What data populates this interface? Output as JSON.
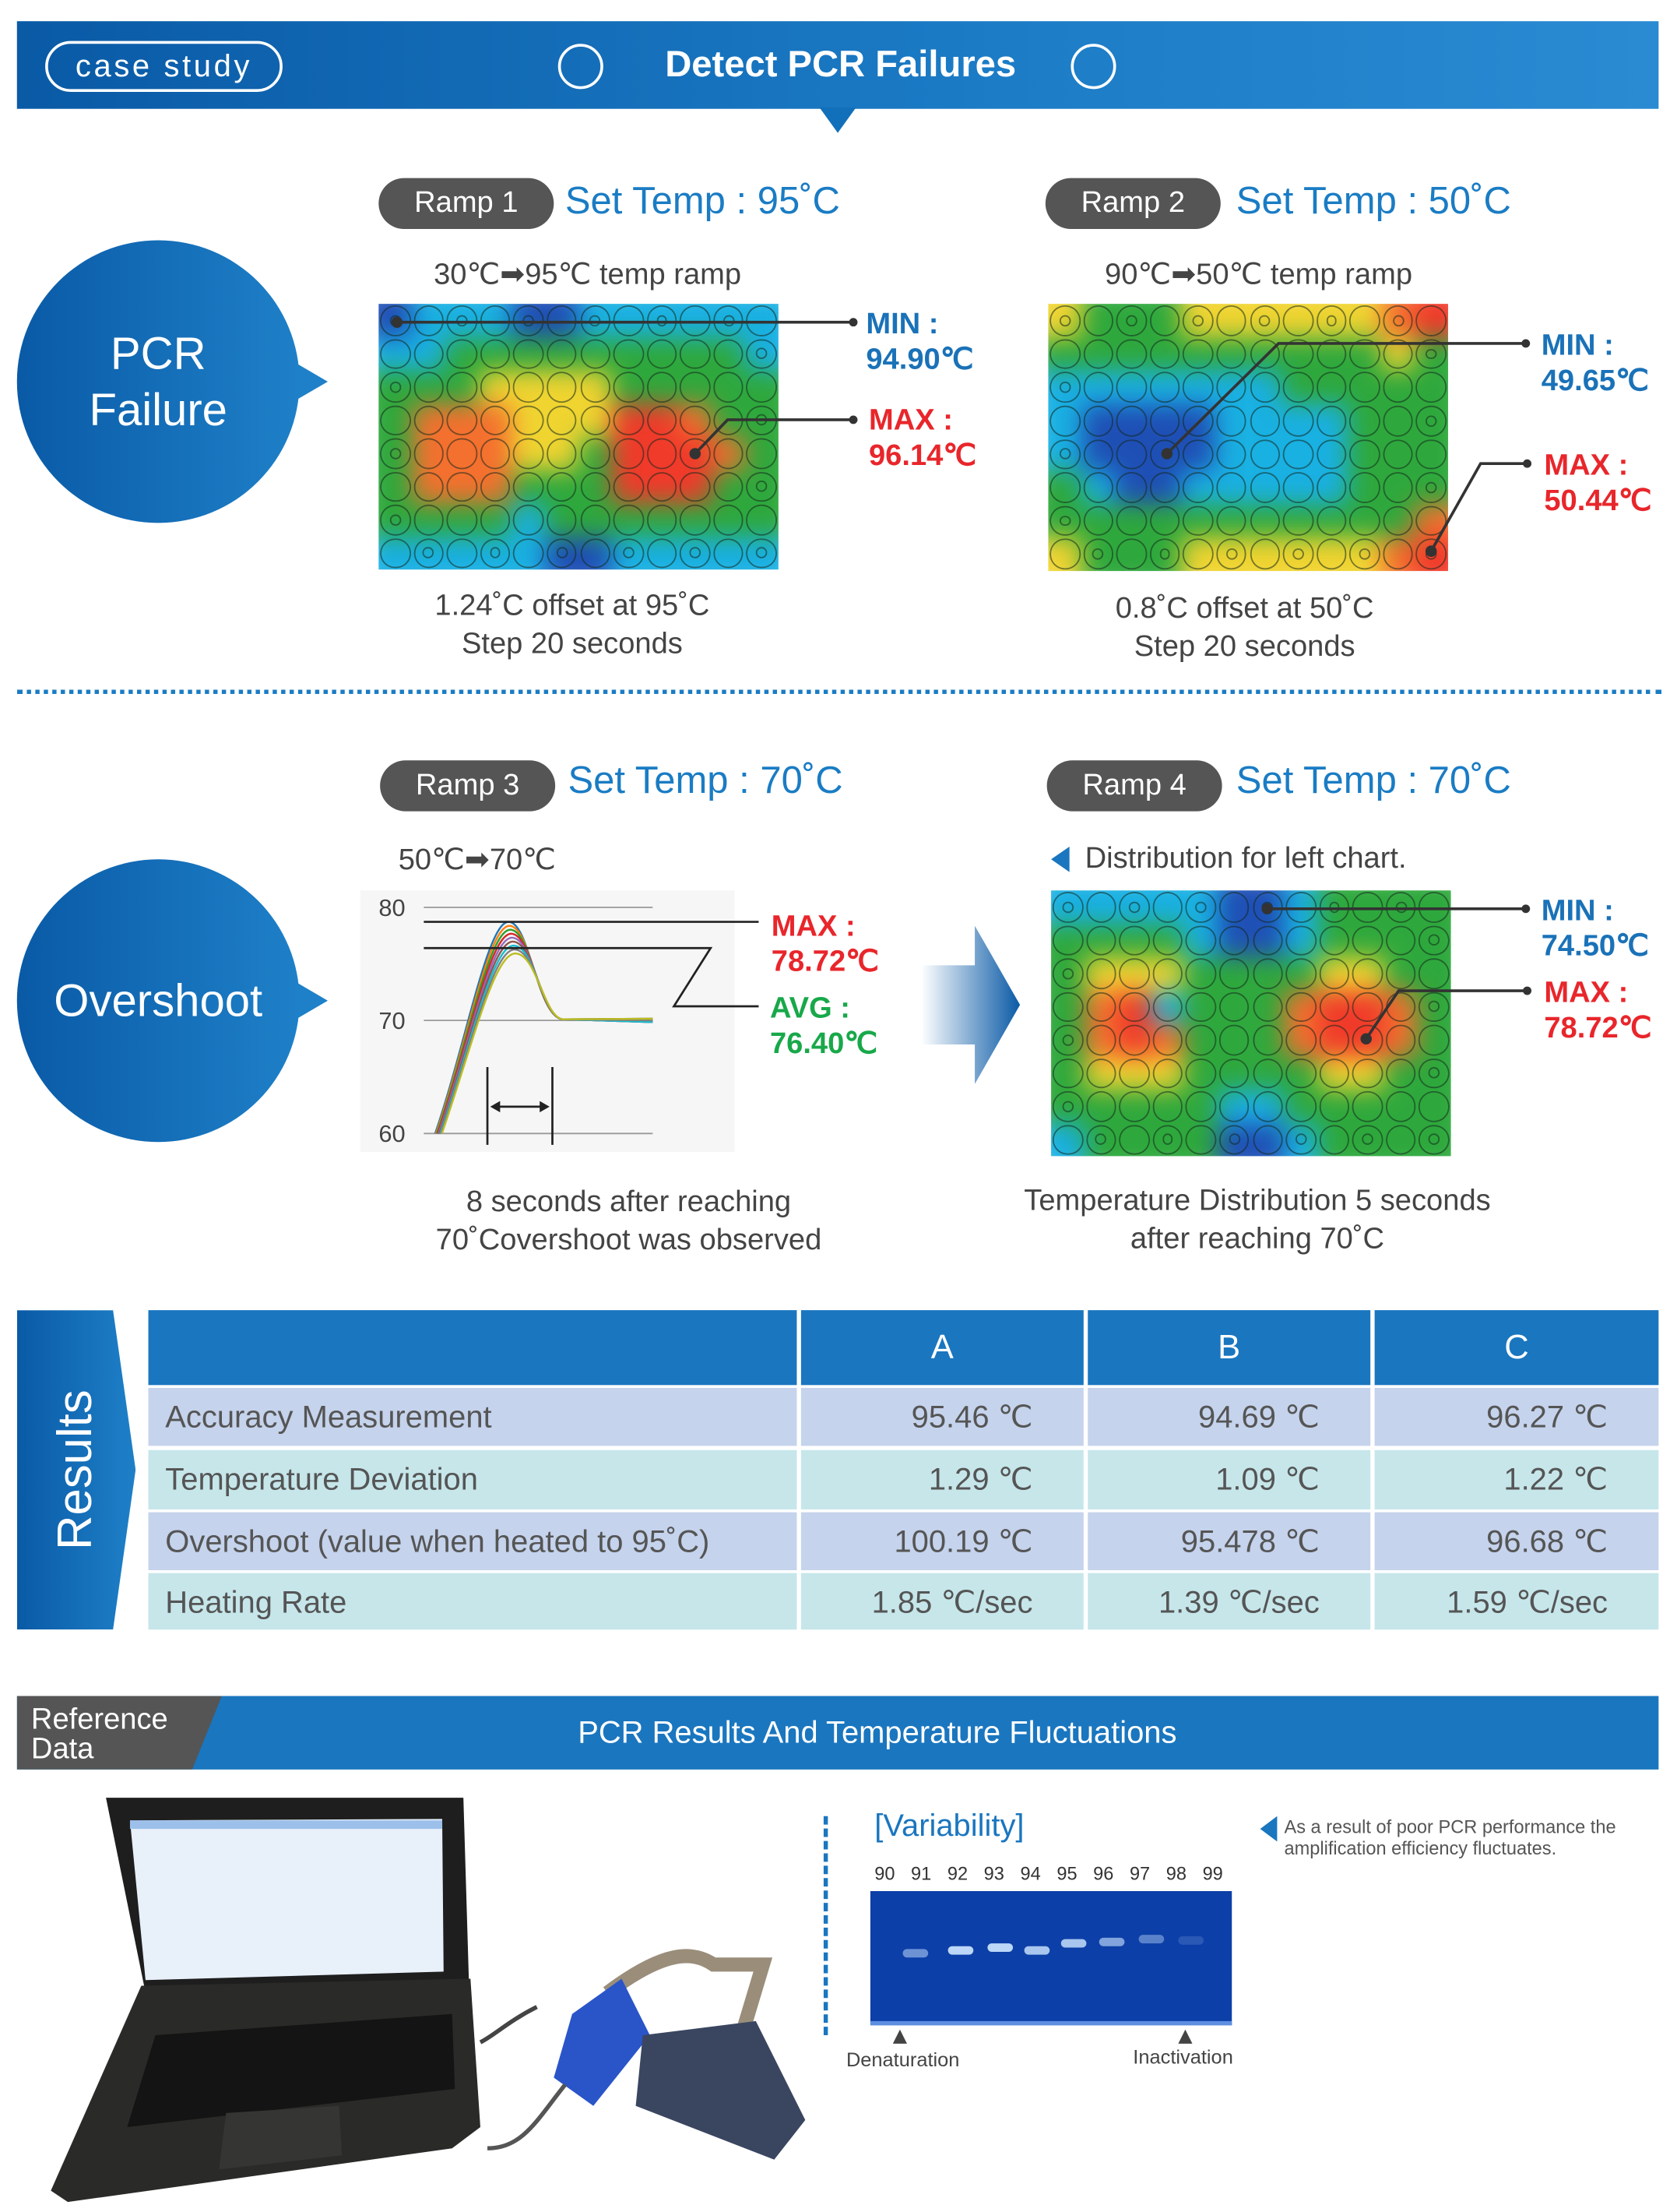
{
  "header": {
    "badge": "case study",
    "title": "Detect PCR Failures"
  },
  "section1": {
    "bubble": [
      "PCR",
      "Failure"
    ],
    "ramp1": {
      "label": "Ramp 1",
      "set_temp": "Set Temp : 95˚C",
      "subtitle": "30℃➡95℃ temp ramp",
      "min_label": "MIN :",
      "min_value": "94.90℃",
      "max_label": "MAX :",
      "max_value": "96.14℃",
      "caption": [
        "1.24˚C offset at 95˚C",
        "Step 20 seconds"
      ]
    },
    "ramp2": {
      "label": "Ramp 2",
      "set_temp": "Set Temp : 50˚C",
      "subtitle": "90℃➡50℃  temp ramp",
      "min_label": "MIN :",
      "min_value": "49.65℃",
      "max_label": "MAX :",
      "max_value": "50.44℃",
      "caption": [
        "0.8˚C offset at 50˚C",
        "Step 20 seconds"
      ]
    }
  },
  "section2": {
    "bubble": "Overshoot",
    "ramp3": {
      "label": "Ramp 3",
      "set_temp": "Set Temp : 70˚C",
      "subtitle": "50℃➡70℃",
      "max_label": "MAX :",
      "max_value": "78.72℃",
      "avg_label": "AVG :",
      "avg_value": "76.40℃",
      "caption": [
        "8 seconds after reaching",
        "70˚Covershoot was observed"
      ]
    },
    "ramp4": {
      "label": "Ramp 4",
      "set_temp": "Set Temp : 70˚C",
      "note": "Distribution for left chart.",
      "min_label": "MIN :",
      "min_value": "74.50℃",
      "max_label": "MAX :",
      "max_value": "78.72℃",
      "caption": [
        "Temperature Distribution 5 seconds",
        "after reaching 70˚C"
      ]
    }
  },
  "chart_data": {
    "type": "line",
    "yticks": [
      "80",
      "70",
      "60"
    ],
    "ylim": [
      60,
      80
    ],
    "set_temp": 70,
    "max": 78.72,
    "avg": 76.4,
    "overshoot_seconds": 8
  },
  "results": {
    "tab": "Results",
    "columns": [
      "",
      "A",
      "B",
      "C"
    ],
    "rows": [
      [
        "Accuracy Measurement",
        "95.46 ℃",
        "94.69 ℃",
        "96.27 ℃"
      ],
      [
        "Temperature Deviation",
        "1.29 ℃",
        "1.09 ℃",
        "1.22 ℃"
      ],
      [
        "Overshoot (value when heated to 95˚C)",
        "100.19 ℃",
        "95.478 ℃",
        "96.68 ℃"
      ],
      [
        "Heating Rate",
        "1.85 ℃/sec",
        "1.39 ℃/sec",
        "1.59 ℃/sec"
      ]
    ]
  },
  "reference": {
    "tab": [
      "Reference",
      "Data"
    ],
    "title": "PCR Results And Temperature Fluctuations",
    "variability": "[Variability]",
    "lanes": [
      "90",
      "91",
      "92",
      "93",
      "94",
      "95",
      "96",
      "97",
      "98",
      "99"
    ],
    "denaturation": "Denaturation",
    "inactivation": "Inactivation",
    "note": "As a result of poor PCR performance the amplification efficiency fluctuates."
  },
  "colors": {
    "brand_blue": "#1a76bf",
    "min_blue": "#1a72b8",
    "max_red": "#e8262b",
    "avg_green": "#18a84a",
    "pill_gray": "#555555"
  }
}
